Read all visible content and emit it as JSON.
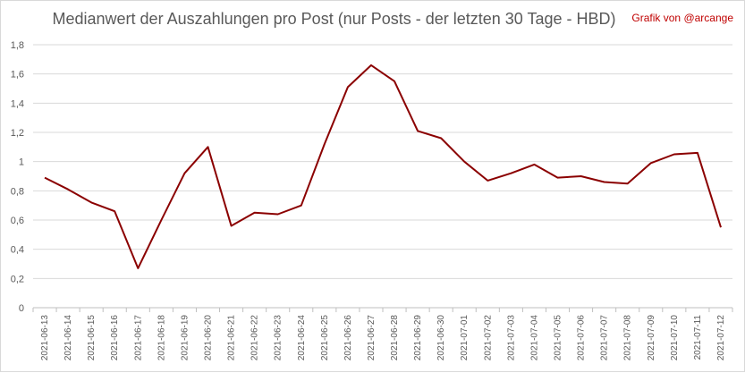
{
  "chart": {
    "title": "Medianwert der Auszahlungen pro Post (nur Posts - der letzten 30 Tage - HBD)",
    "credit": "Grafik von @arcange"
  },
  "colors": {
    "line": "#8b0000",
    "grid": "#d9d9d9",
    "axis": "#bfbfbf"
  },
  "chart_data": {
    "type": "line",
    "title": "Medianwert der Auszahlungen pro Post (nur Posts - der letzten 30 Tage - HBD)",
    "xlabel": "",
    "ylabel": "",
    "ylim": [
      0,
      1.8
    ],
    "y_ticks": [
      "0",
      "0,2",
      "0,4",
      "0,6",
      "0,8",
      "1",
      "1,2",
      "1,4",
      "1,6",
      "1,8"
    ],
    "grid": true,
    "legend": "none",
    "categories": [
      "2021-06-13",
      "2021-06-14",
      "2021-06-15",
      "2021-06-16",
      "2021-06-17",
      "2021-06-18",
      "2021-06-19",
      "2021-06-20",
      "2021-06-21",
      "2021-06-22",
      "2021-06-23",
      "2021-06-24",
      "2021-06-25",
      "2021-06-26",
      "2021-06-27",
      "2021-06-28",
      "2021-06-29",
      "2021-06-30",
      "2021-07-01",
      "2021-07-02",
      "2021-07-03",
      "2021-07-04",
      "2021-07-05",
      "2021-07-06",
      "2021-07-07",
      "2021-07-08",
      "2021-07-09",
      "2021-07-10",
      "2021-07-11",
      "2021-07-12"
    ],
    "series": [
      {
        "values": [
          0.89,
          0.81,
          0.72,
          0.66,
          0.27,
          0.6,
          0.92,
          1.1,
          0.56,
          0.65,
          0.64,
          0.7,
          1.12,
          1.51,
          1.66,
          1.55,
          1.21,
          1.16,
          1.0,
          0.87,
          0.92,
          0.98,
          0.89,
          0.9,
          0.86,
          0.85,
          0.99,
          1.05,
          1.06,
          0.55
        ]
      }
    ]
  }
}
